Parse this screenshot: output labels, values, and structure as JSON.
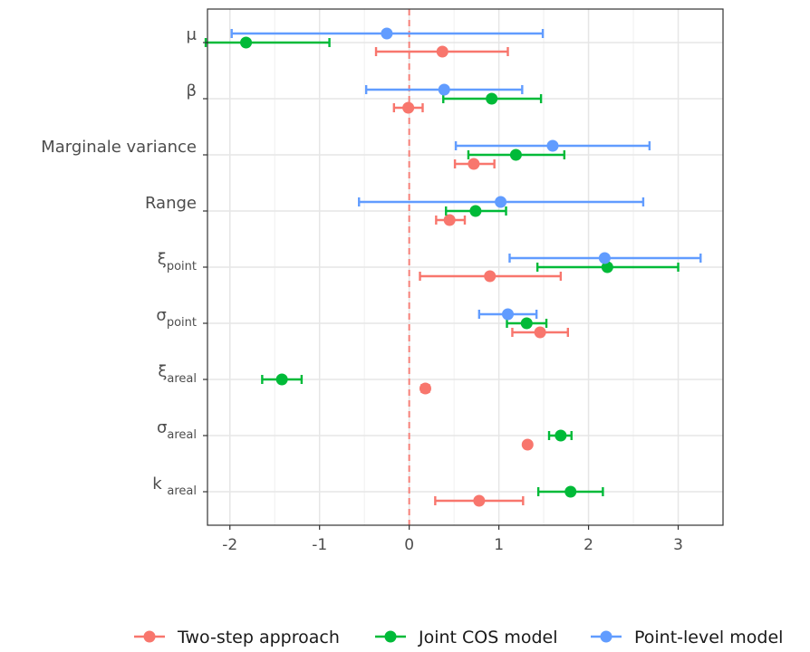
{
  "chart_data": {
    "type": "interval",
    "x_ticks": [
      "-2",
      "-1",
      "0",
      "1",
      "2",
      "3"
    ],
    "x_tick_values": [
      -2,
      -1,
      0,
      1,
      2,
      3
    ],
    "xlim": [
      -2.25,
      3.5
    ],
    "reference_line": 0,
    "grid": true,
    "legend_position": "bottom",
    "rows": [
      {
        "label": "μ",
        "sub": ""
      },
      {
        "label": "β",
        "sub": ""
      },
      {
        "label": "Marginale variance",
        "sub": ""
      },
      {
        "label": "Range",
        "sub": ""
      },
      {
        "label": "ξ",
        "sub": "point"
      },
      {
        "label": "σ",
        "sub": "point"
      },
      {
        "label": "ξ",
        "sub": "areal"
      },
      {
        "label": "σ",
        "sub": "areal"
      },
      {
        "label": "k",
        "sub": "areal"
      }
    ],
    "series": [
      {
        "name": "Two-step approach",
        "color": "#F8766D",
        "points": [
          {
            "param": "μ",
            "estimate": 0.37,
            "lower": -0.37,
            "upper": 1.1
          },
          {
            "param": "β",
            "estimate": -0.01,
            "lower": -0.17,
            "upper": 0.15
          },
          {
            "param": "Marginale variance",
            "estimate": 0.72,
            "lower": 0.51,
            "upper": 0.95
          },
          {
            "param": "Range",
            "estimate": 0.45,
            "lower": 0.3,
            "upper": 0.62
          },
          {
            "param": "ξ_point",
            "estimate": 0.9,
            "lower": 0.12,
            "upper": 1.69
          },
          {
            "param": "σ_point",
            "estimate": 1.46,
            "lower": 1.15,
            "upper": 1.77
          },
          {
            "param": "ξ_areal",
            "estimate": 0.18,
            "lower": 0.14,
            "upper": 0.22
          },
          {
            "param": "σ_areal",
            "estimate": 1.32,
            "lower": 1.3,
            "upper": 1.34
          },
          {
            "param": "k_areal",
            "estimate": 0.78,
            "lower": 0.29,
            "upper": 1.27
          }
        ]
      },
      {
        "name": "Joint COS model",
        "color": "#00BA38",
        "points": [
          {
            "param": "μ",
            "estimate": -1.82,
            "lower": -2.27,
            "upper": -0.89
          },
          {
            "param": "β",
            "estimate": 0.92,
            "lower": 0.38,
            "upper": 1.47
          },
          {
            "param": "Marginale variance",
            "estimate": 1.19,
            "lower": 0.66,
            "upper": 1.73
          },
          {
            "param": "Range",
            "estimate": 0.74,
            "lower": 0.41,
            "upper": 1.08
          },
          {
            "param": "ξ_point",
            "estimate": 2.21,
            "lower": 1.43,
            "upper": 3.0
          },
          {
            "param": "σ_point",
            "estimate": 1.31,
            "lower": 1.09,
            "upper": 1.53
          },
          {
            "param": "ξ_areal",
            "estimate": -1.42,
            "lower": -1.64,
            "upper": -1.2
          },
          {
            "param": "σ_areal",
            "estimate": 1.69,
            "lower": 1.56,
            "upper": 1.81
          },
          {
            "param": "k_areal",
            "estimate": 1.8,
            "lower": 1.44,
            "upper": 2.16
          }
        ]
      },
      {
        "name": "Point-level model",
        "color": "#619CFF",
        "points": [
          {
            "param": "μ",
            "estimate": -0.25,
            "lower": -1.98,
            "upper": 1.49
          },
          {
            "param": "β",
            "estimate": 0.39,
            "lower": -0.48,
            "upper": 1.26
          },
          {
            "param": "Marginale variance",
            "estimate": 1.6,
            "lower": 0.52,
            "upper": 2.68
          },
          {
            "param": "Range",
            "estimate": 1.02,
            "lower": -0.56,
            "upper": 2.61
          },
          {
            "param": "ξ_point",
            "estimate": 2.18,
            "lower": 1.12,
            "upper": 3.25
          },
          {
            "param": "σ_point",
            "estimate": 1.1,
            "lower": 0.78,
            "upper": 1.42
          }
        ]
      }
    ]
  }
}
